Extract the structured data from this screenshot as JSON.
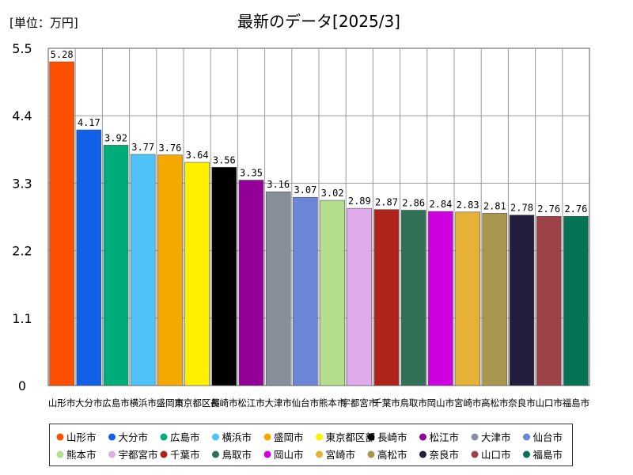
{
  "unit_label": "[単位：万円]",
  "chart_data": {
    "type": "bar",
    "title": "最新のデータ[2025/3]",
    "xlabel": "",
    "ylabel": "",
    "ylim": [
      0,
      5.5
    ],
    "yticks": [
      "0",
      "1.1",
      "2.2",
      "3.3",
      "4.4",
      "5.5"
    ],
    "grid": true,
    "legend_position": "bottom",
    "categories": [
      "山形市",
      "大分市",
      "広島市",
      "横浜市",
      "盛岡市",
      "東京都区部",
      "長崎市",
      "松江市",
      "大津市",
      "仙台市",
      "熊本市",
      "宇都宮市",
      "千葉市",
      "鳥取市",
      "岡山市",
      "宮崎市",
      "高松市",
      "奈良市",
      "山口市",
      "福島市"
    ],
    "values": [
      5.28,
      4.17,
      3.92,
      3.77,
      3.76,
      3.64,
      3.56,
      3.35,
      3.16,
      3.07,
      3.02,
      2.89,
      2.87,
      2.86,
      2.84,
      2.83,
      2.81,
      2.78,
      2.76,
      2.76
    ],
    "value_labels": [
      "5.28",
      "4.17",
      "3.92",
      "3.77",
      "3.76",
      "3.64",
      "3.56",
      "3.35",
      "3.16",
      "3.07",
      "3.02",
      "2.89",
      "2.87",
      "2.86",
      "2.84",
      "2.83",
      "2.81",
      "2.78",
      "2.76",
      "2.76"
    ],
    "colors": [
      "#ff4f00",
      "#1060e8",
      "#00ad7a",
      "#4fc3f7",
      "#f5a800",
      "#fff000",
      "#000000",
      "#920098",
      "#878f9a",
      "#6b86d6",
      "#b5de8c",
      "#e1abeb",
      "#b0231d",
      "#327058",
      "#cf00e0",
      "#e5b136",
      "#a9964e",
      "#231d3e",
      "#9c4248",
      "#057356"
    ]
  }
}
